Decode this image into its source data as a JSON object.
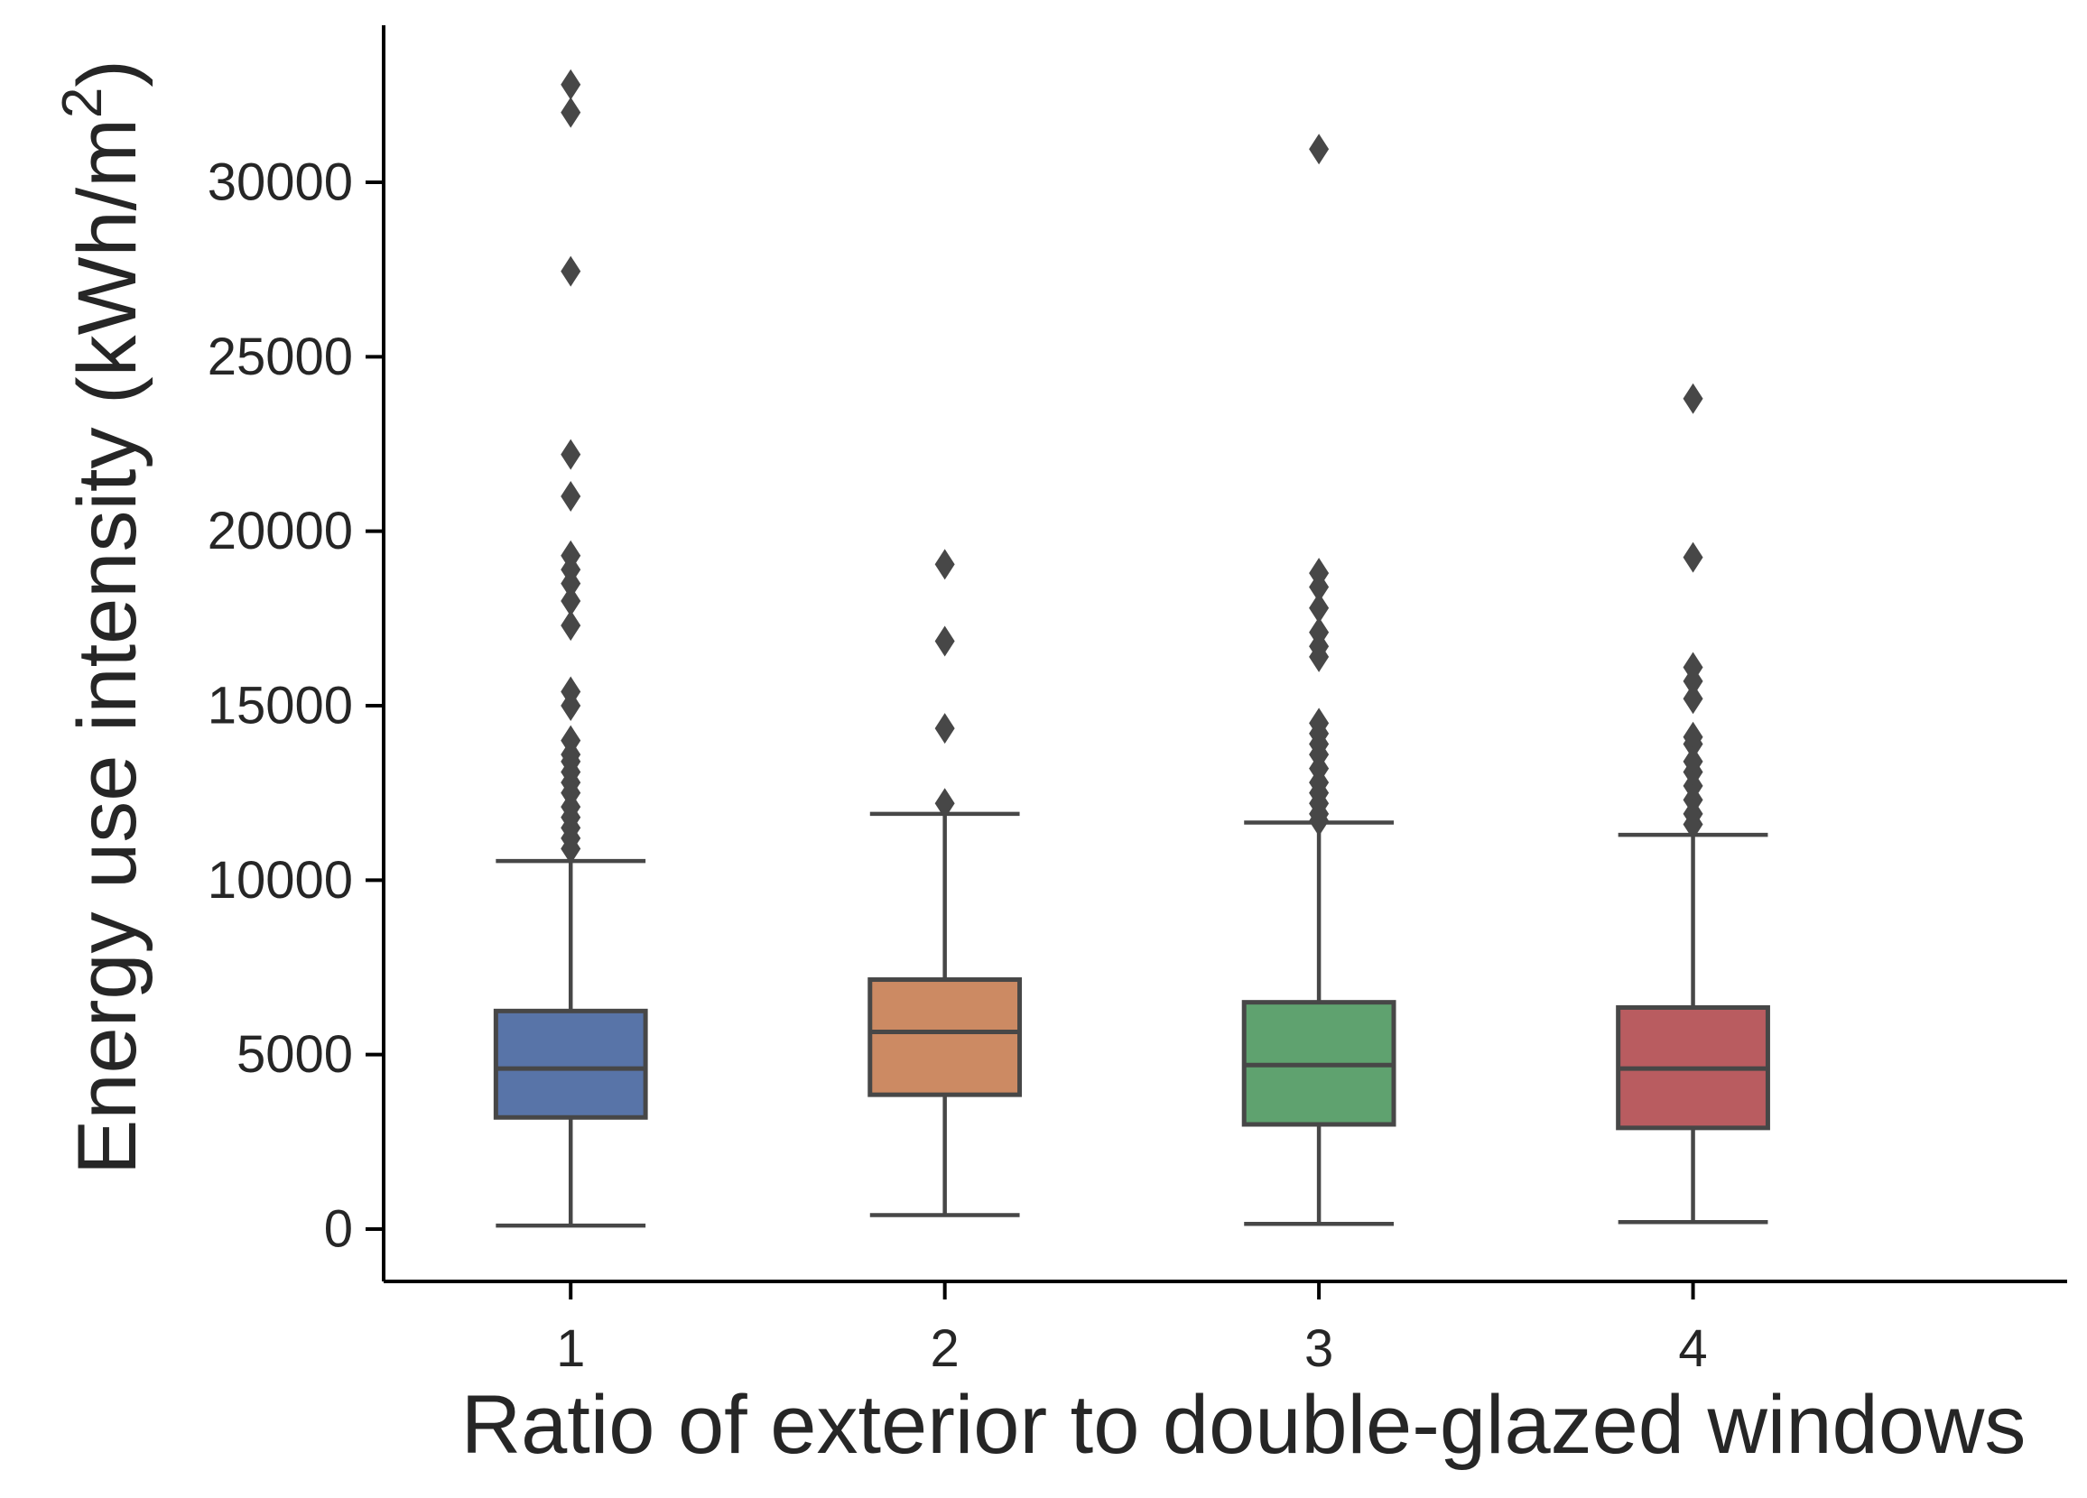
{
  "chart_data": {
    "type": "box",
    "title": "",
    "xlabel": "Ratio of exterior to double-glazed windows",
    "ylabel": {
      "prefix": "Energy use intensity (kWh/m",
      "superscript": "2",
      "suffix": ")"
    },
    "ylim": [
      -1500,
      34500
    ],
    "yticks": [
      0,
      5000,
      10000,
      15000,
      20000,
      25000,
      30000
    ],
    "ytick_labels": [
      "0",
      "5000",
      "10000",
      "15000",
      "20000",
      "25000",
      "30000"
    ],
    "categories": [
      "1",
      "2",
      "3",
      "4"
    ],
    "grid": false,
    "legend": "none",
    "series": [
      {
        "category": "1",
        "color": "#5874a8",
        "whisker_low": 100,
        "q1": 3200,
        "median": 4600,
        "q3": 6250,
        "whisker_high": 10550,
        "outliers": [
          32800,
          32000,
          27450,
          22200,
          21000,
          19300,
          18900,
          18500,
          18000,
          17300,
          15400,
          15000,
          14000,
          13600,
          13400,
          13100,
          12800,
          12500,
          12100,
          11800,
          11500,
          11200,
          10900
        ]
      },
      {
        "category": "2",
        "color": "#cc8a63",
        "whisker_low": 400,
        "q1": 3850,
        "median": 5650,
        "q3": 7150,
        "whisker_high": 11900,
        "outliers": [
          19050,
          16850,
          14350,
          12200
        ]
      },
      {
        "category": "3",
        "color": "#5fa26f",
        "whisker_low": 150,
        "q1": 3000,
        "median": 4700,
        "q3": 6500,
        "whisker_high": 11650,
        "outliers": [
          30950,
          18800,
          18400,
          17800,
          17100,
          16700,
          16400,
          14500,
          14200,
          13900,
          13600,
          13200,
          12800,
          12500,
          12200,
          11900,
          11700
        ]
      },
      {
        "category": "4",
        "color": "#b95c60",
        "whisker_low": 200,
        "q1": 2900,
        "median": 4600,
        "q3": 6350,
        "whisker_high": 11300,
        "outliers": [
          23800,
          19250,
          16100,
          15700,
          15200,
          14100,
          13900,
          13400,
          13100,
          12700,
          12300,
          11900,
          11600
        ]
      }
    ]
  }
}
